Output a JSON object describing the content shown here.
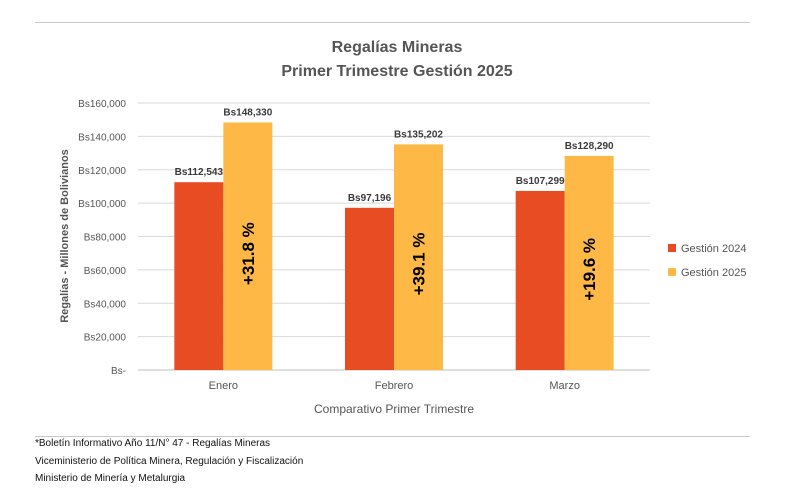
{
  "chart_data": {
    "type": "bar",
    "title": "Regalías Mineras",
    "subtitle": "Primer Trimestre Gestión 2025",
    "xlabel": "Comparativo Primer Trimestre",
    "ylabel": "Regalías - Millones de Bolivianos",
    "categories": [
      "Enero",
      "Febrero",
      "Marzo"
    ],
    "ylim": [
      0,
      160000
    ],
    "yticks": [
      0,
      20000,
      40000,
      60000,
      80000,
      100000,
      120000,
      140000,
      160000
    ],
    "ytick_labels": [
      "Bs-",
      "Bs20,000",
      "Bs40,000",
      "Bs60,000",
      "Bs80,000",
      "Bs100,000",
      "Bs120,000",
      "Bs140,000",
      "Bs160,000"
    ],
    "grid": true,
    "legend_position": "right",
    "series": [
      {
        "name": "Gestión 2024",
        "color": "#e84c22",
        "values": [
          112543,
          97196,
          107299
        ],
        "labels": [
          "Bs112,543",
          "Bs97,196",
          "Bs107,299"
        ]
      },
      {
        "name": "Gestión 2025",
        "color": "#fdb845",
        "values": [
          148330,
          135202,
          128290
        ],
        "labels": [
          "Bs148,330",
          "Bs135,202",
          "Bs128,290"
        ]
      }
    ],
    "annotations": [
      "+31.8 %",
      "+39.1 %",
      "+19.6 %"
    ]
  },
  "footer": {
    "line1": "*Boletín Informativo Año 11/N° 47 - Regalías Mineras",
    "line2": "Viceministerio de Política Minera, Regulación y Fiscalización",
    "line3": "Ministerio de Minería y Metalurgia"
  }
}
